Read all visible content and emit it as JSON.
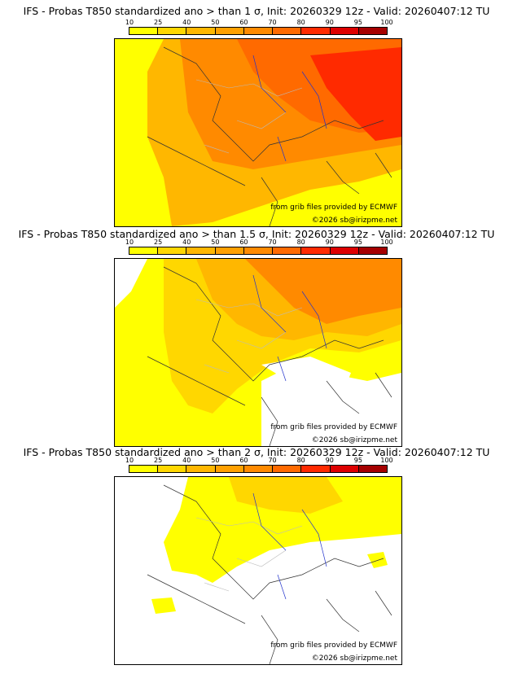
{
  "legend": {
    "ticks": [
      "10",
      "25",
      "40",
      "50",
      "60",
      "70",
      "80",
      "90",
      "95",
      "100"
    ],
    "colors": [
      "#ffff00",
      "#ffd700",
      "#ffb700",
      "#ffa000",
      "#ff8a00",
      "#ff6a00",
      "#ff2a00",
      "#dd0000",
      "#a50000",
      "#5a0000"
    ]
  },
  "panels": [
    {
      "title": "IFS - Probas T850  standardized ano > than 1 σ, Init: 20260329 12z - Valid: 20260407:12 TU",
      "credit_source": "from grib files provided by ECMWF",
      "credit_copyright": "©2026 sb@irizpme.net"
    },
    {
      "title": "IFS - Probas T850  standardized ano > than 1.5 σ, Init: 20260329 12z - Valid: 20260407:12 TU",
      "credit_source": "from grib files provided by ECMWF",
      "credit_copyright": "©2026 sb@irizpme.net"
    },
    {
      "title": "IFS - Probas T850  standardized ano > than 2 σ, Init: 20260329 12z - Valid: 20260407:12 TU",
      "credit_source": "from grib files provided by ECMWF",
      "credit_copyright": "©2026 sb@irizpme.net"
    }
  ]
}
